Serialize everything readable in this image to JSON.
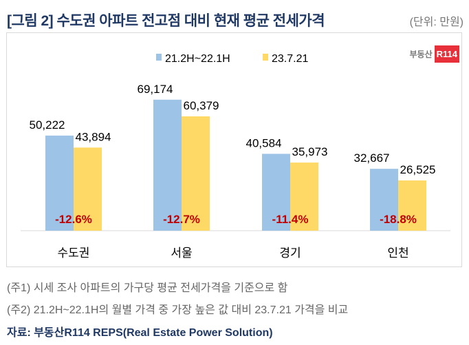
{
  "header": {
    "title": "[그림 2] 수도권 아파트 전고점 대비 현재 평균 전세가격",
    "unit": "(단위: 만원)"
  },
  "logo": {
    "text": "부동산",
    "badge": "R114"
  },
  "chart_data": {
    "type": "bar",
    "title": "[그림 2] 수도권 아파트 전고점 대비 현재 평균 전세가격",
    "categories": [
      "수도권",
      "서울",
      "경기",
      "인천"
    ],
    "series": [
      {
        "name": "21.2H~22.1H",
        "color": "#9dc3e6",
        "values": [
          50222,
          69174,
          40584,
          32667
        ],
        "labels": [
          "50,222",
          "69,174",
          "40,584",
          "32,667"
        ]
      },
      {
        "name": "23.7.21",
        "color": "#ffd966",
        "values": [
          43894,
          60379,
          35973,
          26525
        ],
        "labels": [
          "43,894",
          "60,379",
          "35,973",
          "26,525"
        ]
      }
    ],
    "change_labels": [
      "-12.6%",
      "-12.7%",
      "-11.4%",
      "-18.8%"
    ],
    "change_color": "#c00000",
    "ylim": [
      0,
      80000
    ],
    "legend": "top-center",
    "grid": false
  },
  "notes": [
    "(주1) 시세 조사 아파트의 가구당 평균 전세가격을 기준으로 함",
    "(주2) 21.2H~22.1H의 월별 가격 중 가장 높은 값 대비 23.7.21 가격을 비교"
  ],
  "source": "자료: 부동산R114 REPS(Real Estate Power Solution)"
}
